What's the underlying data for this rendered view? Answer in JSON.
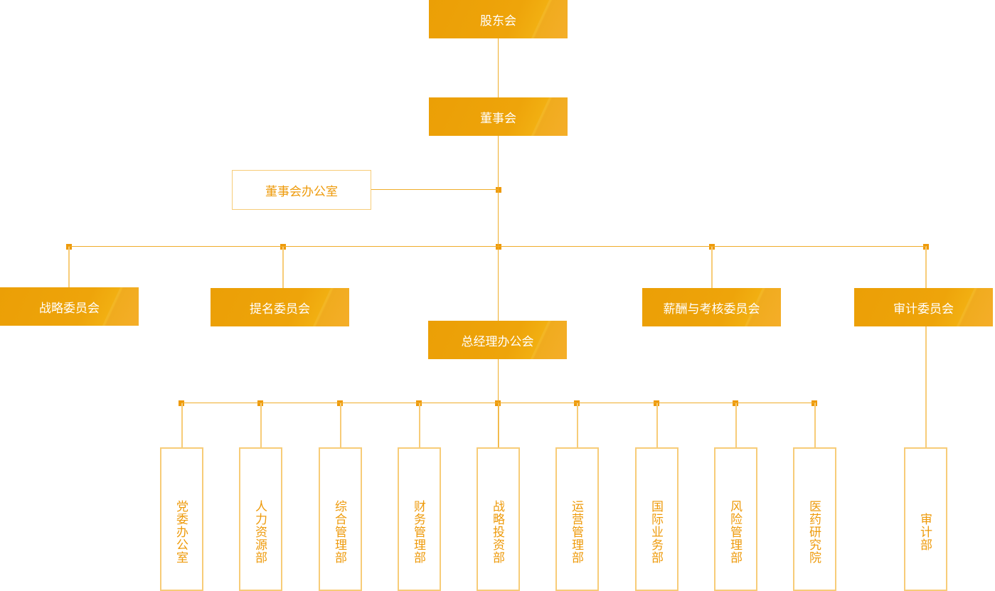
{
  "colors": {
    "accent": "#ee9a0a",
    "line": "#f0ad2a",
    "outline": "#f7cc78"
  },
  "shareholders": "股东会",
  "board": "董事会",
  "board_office": "董事会办公室",
  "committees": [
    "战略委员会",
    "提名委员会",
    "薪酬与考核委员会",
    "审计委员会"
  ],
  "gm_office": "总经理办公会",
  "departments": [
    "党委办公室",
    "人力资源部",
    "综合管理部",
    "财务管理部",
    "战略投资部",
    "运营管理部",
    "国际业务部",
    "风险管理部",
    "医药研究院"
  ],
  "audit_dept": "审计部"
}
